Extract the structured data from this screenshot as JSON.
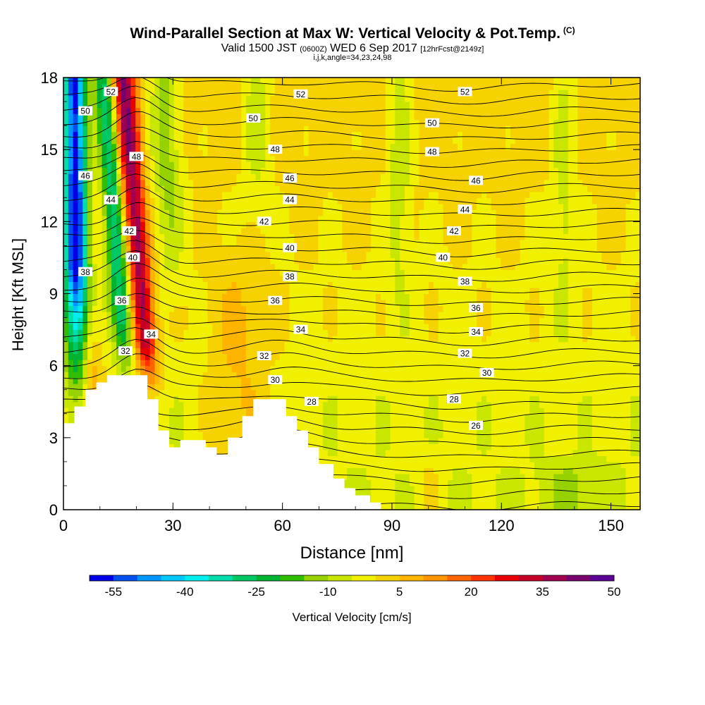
{
  "title": {
    "main": "Wind-Parallel Section at Max W: Vertical Velocity & Pot.Temp.",
    "main_suffix": "(C)",
    "valid_prefix": "Valid 1500 JST",
    "valid_z": "(0600Z)",
    "valid_date": "WED 6 Sep 2017",
    "valid_fcst": "[12hrFcst@2149z]",
    "indices": "i,j,k,angle=34,23,24,98"
  },
  "chart_data": {
    "type": "heatmap",
    "xlabel": "Distance [nm]",
    "ylabel": "Height [Kft MSL]",
    "xlim": [
      0,
      158
    ],
    "ylim": [
      0,
      18
    ],
    "x_ticks": [
      "0",
      "30",
      "60",
      "90",
      "120",
      "150"
    ],
    "x_tick_values": [
      0,
      30,
      60,
      90,
      120,
      150
    ],
    "y_ticks": [
      "0",
      "3",
      "6",
      "9",
      "12",
      "15",
      "18"
    ],
    "y_tick_values": [
      0,
      3,
      6,
      9,
      12,
      15,
      18
    ],
    "colorbar": {
      "label": "Vertical Velocity [cm/s]",
      "ticks": [
        "-55",
        "-40",
        "-25",
        "-10",
        "5",
        "20",
        "35",
        "50"
      ],
      "colors": [
        "#0000e6",
        "#0050f0",
        "#0096ff",
        "#00c8ff",
        "#00eeee",
        "#00dcaa",
        "#00c864",
        "#00b432",
        "#32be00",
        "#96d200",
        "#c8e600",
        "#f0f000",
        "#f5d200",
        "#ffb400",
        "#ff9600",
        "#ff6400",
        "#ff3200",
        "#e60000",
        "#c80028",
        "#a00050",
        "#78006e",
        "#5a0096"
      ]
    },
    "contour_labels": [
      {
        "v": "52",
        "x": 13,
        "y": 17.4
      },
      {
        "v": "52",
        "x": 65,
        "y": 17.3
      },
      {
        "v": "52",
        "x": 110,
        "y": 17.4
      },
      {
        "v": "50",
        "x": 6,
        "y": 16.6
      },
      {
        "v": "50",
        "x": 52,
        "y": 16.3
      },
      {
        "v": "50",
        "x": 101,
        "y": 16.1
      },
      {
        "v": "48",
        "x": 20,
        "y": 14.7
      },
      {
        "v": "48",
        "x": 58,
        "y": 15.0
      },
      {
        "v": "48",
        "x": 101,
        "y": 14.9
      },
      {
        "v": "46",
        "x": 6,
        "y": 13.9
      },
      {
        "v": "46",
        "x": 62,
        "y": 13.8
      },
      {
        "v": "46",
        "x": 113,
        "y": 13.7
      },
      {
        "v": "44",
        "x": 13,
        "y": 12.9
      },
      {
        "v": "44",
        "x": 62,
        "y": 12.9
      },
      {
        "v": "44",
        "x": 110,
        "y": 12.5
      },
      {
        "v": "42",
        "x": 18,
        "y": 11.6
      },
      {
        "v": "42",
        "x": 55,
        "y": 12.0
      },
      {
        "v": "42",
        "x": 107,
        "y": 11.6
      },
      {
        "v": "40",
        "x": 19,
        "y": 10.5
      },
      {
        "v": "40",
        "x": 62,
        "y": 10.9
      },
      {
        "v": "40",
        "x": 104,
        "y": 10.5
      },
      {
        "v": "38",
        "x": 6,
        "y": 9.9
      },
      {
        "v": "38",
        "x": 62,
        "y": 9.7
      },
      {
        "v": "38",
        "x": 110,
        "y": 9.5
      },
      {
        "v": "36",
        "x": 16,
        "y": 8.7
      },
      {
        "v": "36",
        "x": 58,
        "y": 8.7
      },
      {
        "v": "36",
        "x": 113,
        "y": 8.4
      },
      {
        "v": "34",
        "x": 24,
        "y": 7.3
      },
      {
        "v": "34",
        "x": 65,
        "y": 7.5
      },
      {
        "v": "34",
        "x": 113,
        "y": 7.4
      },
      {
        "v": "32",
        "x": 17,
        "y": 6.6
      },
      {
        "v": "32",
        "x": 55,
        "y": 6.4
      },
      {
        "v": "32",
        "x": 110,
        "y": 6.5
      },
      {
        "v": "30",
        "x": 58,
        "y": 5.4
      },
      {
        "v": "30",
        "x": 116,
        "y": 5.7
      },
      {
        "v": "28",
        "x": 68,
        "y": 4.5
      },
      {
        "v": "28",
        "x": 107,
        "y": 4.6
      },
      {
        "v": "26",
        "x": 113,
        "y": 3.5
      }
    ]
  }
}
